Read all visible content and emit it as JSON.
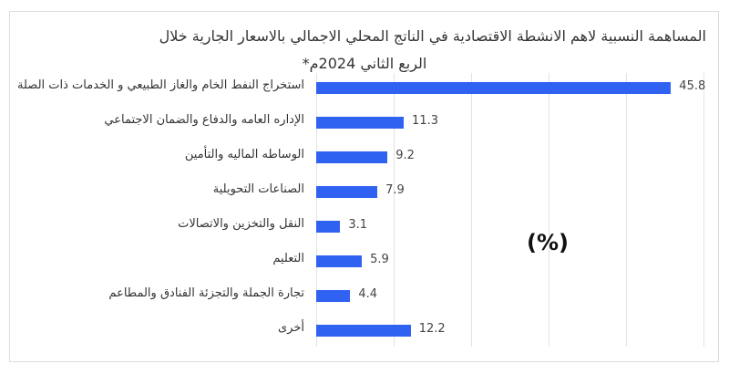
{
  "chart_data": {
    "type": "bar",
    "orientation": "horizontal",
    "title": "المساهمة النسبية لاهم الانشطة الاقتصادية في الناتج المحلي الاجمالي بالاسعار الجارية خلال",
    "subtitle": "الربع الثاني 2024م*",
    "unit_label": "(%)",
    "xlabel": "",
    "ylabel": "",
    "xlim": [
      0,
      50
    ],
    "grid": true,
    "legend": "none",
    "bar_color": "#2f62f0",
    "categories": [
      "استخراج النفط الخام والغاز الطبيعي و الخدمات ذات الصلة",
      "الإداره العامه والدفاع والضمان الاجتماعي",
      "الوساطه الماليه والتأمين",
      "الصناعات التحويلية",
      "النقل والتخزين والاتصالات",
      "التعليم",
      "تجارة الجملة والتجزئة الفنادق والمطاعم",
      "أخرى"
    ],
    "values": [
      45.8,
      11.3,
      9.2,
      7.9,
      3.1,
      5.9,
      4.4,
      12.2
    ],
    "value_labels": [
      "45.8",
      "11.3",
      "9.2",
      "7.9",
      "3.1",
      "5.9",
      "4.4",
      "12.2"
    ]
  }
}
